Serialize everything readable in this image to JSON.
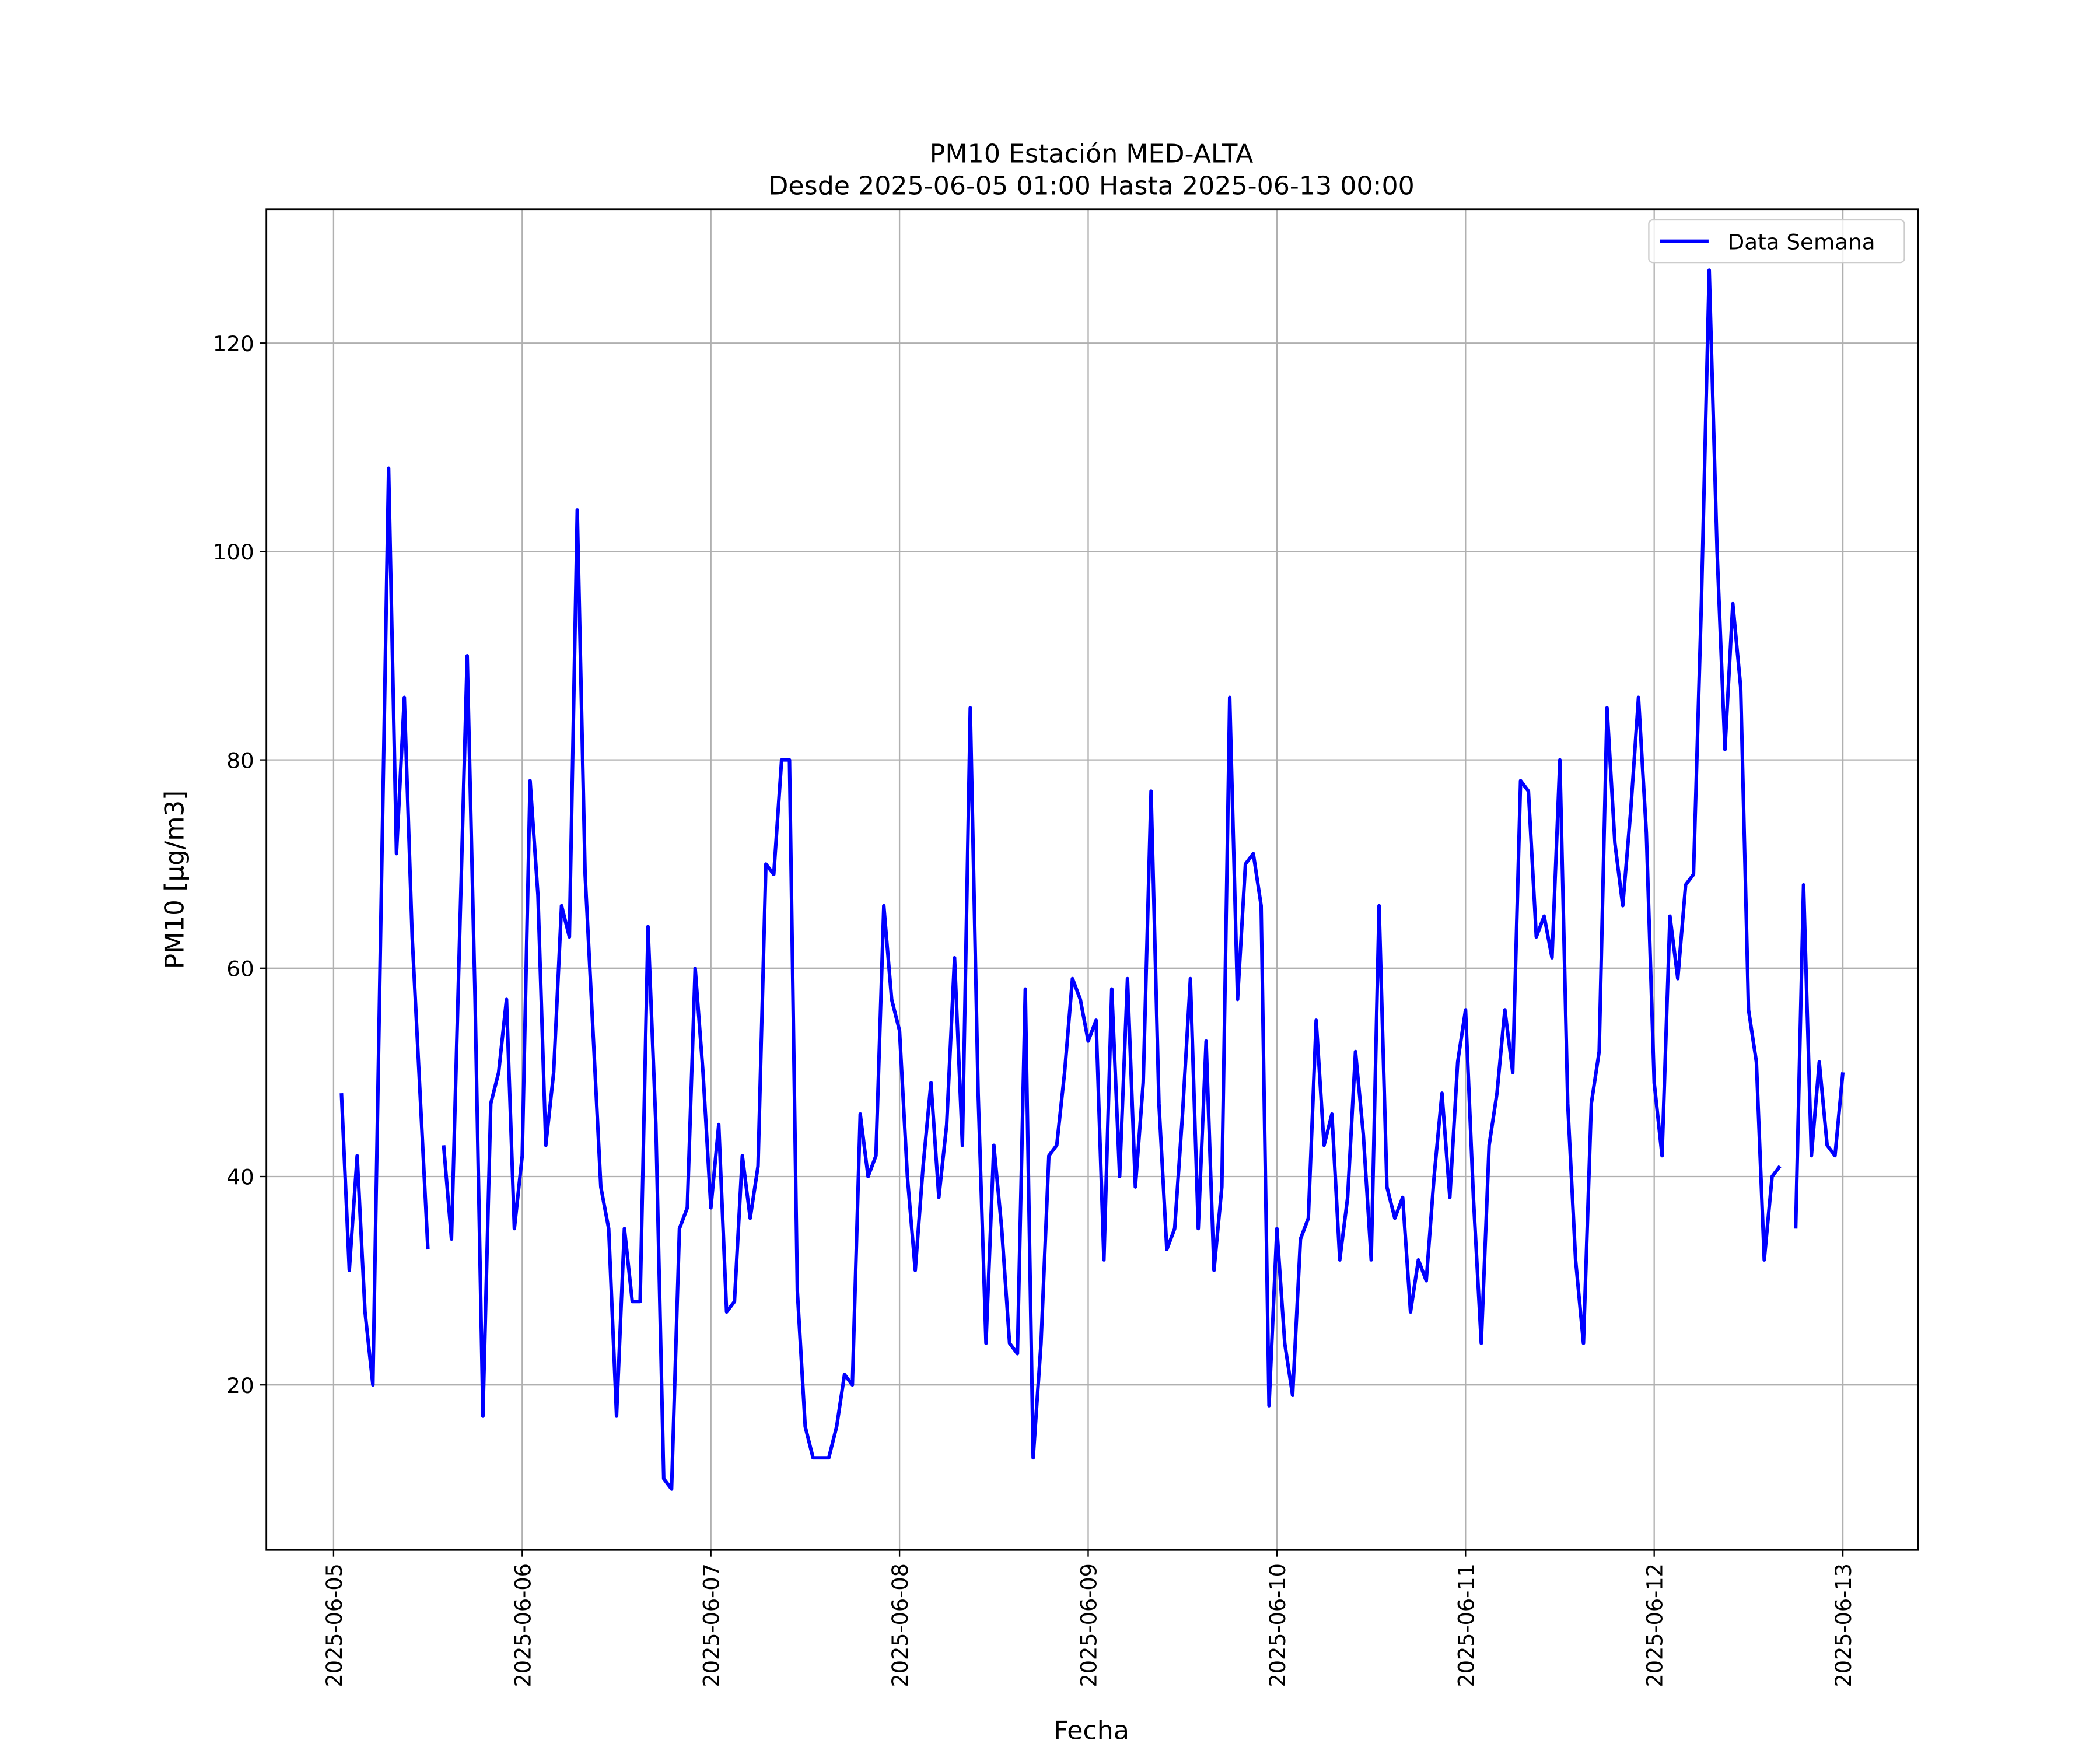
{
  "chart_data": {
    "type": "line",
    "title": "PM10 Estación MED-ALTA",
    "subtitle": "Desde 2025-06-05 01:00 Hasta 2025-06-13 00:00",
    "x_label": "Fecha",
    "y_label": "PM10 [μg/m3]",
    "x": [
      "2025-06-05 01:00",
      "2025-06-05 02:00",
      "2025-06-05 03:00",
      "2025-06-05 04:00",
      "2025-06-05 05:00",
      "2025-06-05 06:00",
      "2025-06-05 07:00",
      "2025-06-05 08:00",
      "2025-06-05 09:00",
      "2025-06-05 10:00",
      "2025-06-05 11:00",
      "2025-06-05 12:00",
      "2025-06-05 13:00",
      "2025-06-05 14:00",
      "2025-06-05 15:00",
      "2025-06-05 16:00",
      "2025-06-05 17:00",
      "2025-06-05 18:00",
      "2025-06-05 19:00",
      "2025-06-05 20:00",
      "2025-06-05 21:00",
      "2025-06-05 22:00",
      "2025-06-05 23:00",
      "2025-06-06 00:00",
      "2025-06-06 01:00",
      "2025-06-06 02:00",
      "2025-06-06 03:00",
      "2025-06-06 04:00",
      "2025-06-06 05:00",
      "2025-06-06 06:00",
      "2025-06-06 07:00",
      "2025-06-06 08:00",
      "2025-06-06 09:00",
      "2025-06-06 10:00",
      "2025-06-06 11:00",
      "2025-06-06 12:00",
      "2025-06-06 13:00",
      "2025-06-06 14:00",
      "2025-06-06 15:00",
      "2025-06-06 16:00",
      "2025-06-06 17:00",
      "2025-06-06 18:00",
      "2025-06-06 19:00",
      "2025-06-06 20:00",
      "2025-06-06 21:00",
      "2025-06-06 22:00",
      "2025-06-06 23:00",
      "2025-06-07 00:00",
      "2025-06-07 01:00",
      "2025-06-07 02:00",
      "2025-06-07 03:00",
      "2025-06-07 04:00",
      "2025-06-07 05:00",
      "2025-06-07 06:00",
      "2025-06-07 07:00",
      "2025-06-07 08:00",
      "2025-06-07 09:00",
      "2025-06-07 10:00",
      "2025-06-07 11:00",
      "2025-06-07 12:00",
      "2025-06-07 13:00",
      "2025-06-07 14:00",
      "2025-06-07 15:00",
      "2025-06-07 16:00",
      "2025-06-07 17:00",
      "2025-06-07 18:00",
      "2025-06-07 19:00",
      "2025-06-07 20:00",
      "2025-06-07 21:00",
      "2025-06-07 22:00",
      "2025-06-07 23:00",
      "2025-06-08 00:00",
      "2025-06-08 01:00",
      "2025-06-08 02:00",
      "2025-06-08 03:00",
      "2025-06-08 04:00",
      "2025-06-08 05:00",
      "2025-06-08 06:00",
      "2025-06-08 07:00",
      "2025-06-08 08:00",
      "2025-06-08 09:00",
      "2025-06-08 10:00",
      "2025-06-08 11:00",
      "2025-06-08 12:00",
      "2025-06-08 13:00",
      "2025-06-08 14:00",
      "2025-06-08 15:00",
      "2025-06-08 16:00",
      "2025-06-08 17:00",
      "2025-06-08 18:00",
      "2025-06-08 19:00",
      "2025-06-08 20:00",
      "2025-06-08 21:00",
      "2025-06-08 22:00",
      "2025-06-08 23:00",
      "2025-06-09 00:00",
      "2025-06-09 01:00",
      "2025-06-09 02:00",
      "2025-06-09 03:00",
      "2025-06-09 04:00",
      "2025-06-09 05:00",
      "2025-06-09 06:00",
      "2025-06-09 07:00",
      "2025-06-09 08:00",
      "2025-06-09 09:00",
      "2025-06-09 10:00",
      "2025-06-09 11:00",
      "2025-06-09 12:00",
      "2025-06-09 13:00",
      "2025-06-09 14:00",
      "2025-06-09 15:00",
      "2025-06-09 16:00",
      "2025-06-09 17:00",
      "2025-06-09 18:00",
      "2025-06-09 19:00",
      "2025-06-09 20:00",
      "2025-06-09 21:00",
      "2025-06-09 22:00",
      "2025-06-09 23:00",
      "2025-06-10 00:00",
      "2025-06-10 01:00",
      "2025-06-10 02:00",
      "2025-06-10 03:00",
      "2025-06-10 04:00",
      "2025-06-10 05:00",
      "2025-06-10 06:00",
      "2025-06-10 07:00",
      "2025-06-10 08:00",
      "2025-06-10 09:00",
      "2025-06-10 10:00",
      "2025-06-10 11:00",
      "2025-06-10 12:00",
      "2025-06-10 13:00",
      "2025-06-10 14:00",
      "2025-06-10 15:00",
      "2025-06-10 16:00",
      "2025-06-10 17:00",
      "2025-06-10 18:00",
      "2025-06-10 19:00",
      "2025-06-10 20:00",
      "2025-06-10 21:00",
      "2025-06-10 22:00",
      "2025-06-10 23:00",
      "2025-06-11 00:00",
      "2025-06-11 01:00",
      "2025-06-11 02:00",
      "2025-06-11 03:00",
      "2025-06-11 04:00",
      "2025-06-11 05:00",
      "2025-06-11 06:00",
      "2025-06-11 07:00",
      "2025-06-11 08:00",
      "2025-06-11 09:00",
      "2025-06-11 10:00",
      "2025-06-11 11:00",
      "2025-06-11 12:00",
      "2025-06-11 13:00",
      "2025-06-11 14:00",
      "2025-06-11 15:00",
      "2025-06-11 16:00",
      "2025-06-11 17:00",
      "2025-06-11 18:00",
      "2025-06-11 19:00",
      "2025-06-11 20:00",
      "2025-06-11 21:00",
      "2025-06-11 22:00",
      "2025-06-11 23:00",
      "2025-06-12 00:00",
      "2025-06-12 01:00",
      "2025-06-12 02:00",
      "2025-06-12 03:00",
      "2025-06-12 04:00",
      "2025-06-12 05:00",
      "2025-06-12 06:00",
      "2025-06-12 07:00",
      "2025-06-12 08:00",
      "2025-06-12 09:00",
      "2025-06-12 10:00",
      "2025-06-12 11:00",
      "2025-06-12 12:00",
      "2025-06-12 13:00",
      "2025-06-12 14:00",
      "2025-06-12 15:00",
      "2025-06-12 16:00",
      "2025-06-12 17:00",
      "2025-06-12 18:00",
      "2025-06-12 19:00",
      "2025-06-12 20:00",
      "2025-06-12 21:00",
      "2025-06-12 22:00",
      "2025-06-12 23:00",
      "2025-06-13 00:00"
    ],
    "series": [
      {
        "name": "Data Semana",
        "color": "#0000ff",
        "values": [
          48,
          31,
          42,
          27,
          20,
          64,
          108,
          71,
          86,
          63,
          48,
          33,
          null,
          43,
          34,
          62,
          90,
          57,
          17,
          47,
          50,
          57,
          35,
          42,
          78,
          67,
          43,
          50,
          66,
          63,
          104,
          69,
          54,
          39,
          35,
          17,
          35,
          28,
          28,
          64,
          45,
          11,
          10,
          35,
          37,
          60,
          50,
          37,
          45,
          27,
          28,
          42,
          36,
          41,
          70,
          69,
          80,
          80,
          29,
          16,
          13,
          13,
          13,
          16,
          21,
          20,
          46,
          40,
          42,
          66,
          57,
          54,
          40,
          31,
          41,
          49,
          38,
          45,
          61,
          43,
          85,
          48,
          24,
          43,
          35,
          24,
          23,
          58,
          13,
          24,
          42,
          43,
          50,
          59,
          57,
          53,
          55,
          32,
          58,
          40,
          59,
          39,
          49,
          77,
          47,
          33,
          35,
          46,
          59,
          35,
          53,
          31,
          39,
          86,
          57,
          70,
          71,
          66,
          18,
          35,
          24,
          19,
          34,
          36,
          55,
          43,
          46,
          32,
          38,
          52,
          44,
          32,
          66,
          39,
          36,
          38,
          27,
          32,
          30,
          40,
          48,
          38,
          51,
          56,
          38,
          24,
          43,
          48,
          56,
          50,
          78,
          77,
          63,
          65,
          61,
          80,
          47,
          32,
          24,
          47,
          52,
          85,
          72,
          66,
          75,
          86,
          73,
          49,
          42,
          65,
          59,
          68,
          69,
          95,
          127,
          100,
          81,
          95,
          87,
          56,
          51,
          32,
          40,
          41,
          null,
          35,
          68,
          42,
          51,
          43,
          42,
          50
        ]
      }
    ],
    "xlim": [
      "2025-06-04 15:27",
      "2025-06-13 09:33"
    ],
    "xticks": [
      {
        "value": "2025-06-05 00:00",
        "label": "2025-06-05"
      },
      {
        "value": "2025-06-06 00:00",
        "label": "2025-06-06"
      },
      {
        "value": "2025-06-07 00:00",
        "label": "2025-06-07"
      },
      {
        "value": "2025-06-08 00:00",
        "label": "2025-06-08"
      },
      {
        "value": "2025-06-09 00:00",
        "label": "2025-06-09"
      },
      {
        "value": "2025-06-10 00:00",
        "label": "2025-06-10"
      },
      {
        "value": "2025-06-11 00:00",
        "label": "2025-06-11"
      },
      {
        "value": "2025-06-12 00:00",
        "label": "2025-06-12"
      },
      {
        "value": "2025-06-13 00:00",
        "label": "2025-06-13"
      }
    ],
    "ylim": [
      4.15,
      132.85
    ],
    "yticks": [
      20,
      40,
      60,
      80,
      100,
      120
    ],
    "grid": true,
    "legend": "upper right"
  }
}
